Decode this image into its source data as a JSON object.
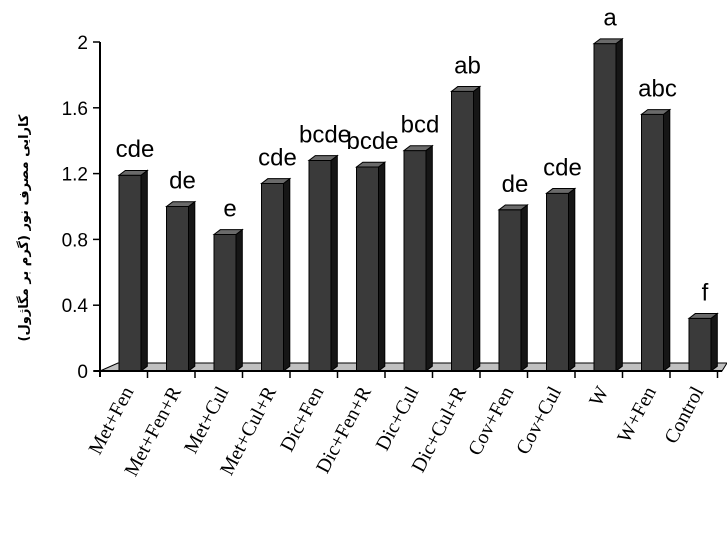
{
  "chart_data": {
    "type": "bar",
    "title": "",
    "xlabel": "",
    "ylabel": "کارایی مصرف نور (گرم بر مگاژول)",
    "ylim": [
      0,
      2
    ],
    "yticks": [
      "0",
      "0.4",
      "0.8",
      "1.2",
      "1.6",
      "2"
    ],
    "grid": false,
    "legend": "none",
    "style": "3d",
    "bar_color": "#3a3a3a",
    "categories": [
      "Met+Fen",
      "Met+Fen+R",
      "Met+Cul",
      "Met+Cul+R",
      "Dic+Fen",
      "Dic+Fen+R",
      "Dic+Cul",
      "Dic+Cul+R",
      "Cov+Fen",
      "Cov+Cul",
      "W",
      "W+Fen",
      "Control"
    ],
    "values": [
      1.19,
      1.0,
      0.83,
      1.14,
      1.28,
      1.24,
      1.34,
      1.7,
      0.98,
      1.08,
      1.99,
      1.56,
      0.32
    ],
    "data_labels": [
      "cde",
      "de",
      "e",
      "cde",
      "bcde",
      "bcde",
      "bcd",
      "ab",
      "de",
      "cde",
      "a",
      "abc",
      "f"
    ]
  }
}
